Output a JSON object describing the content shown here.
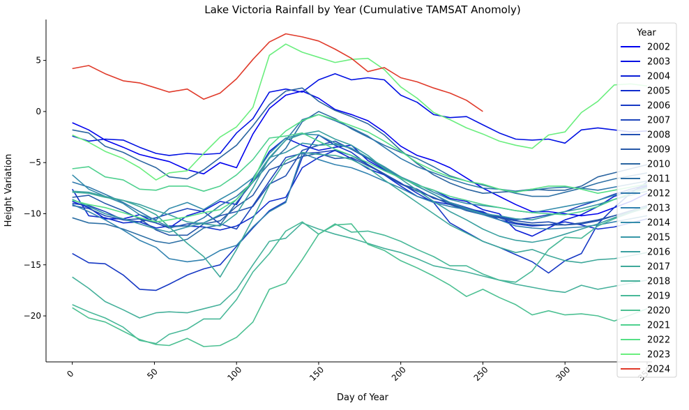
{
  "chart_data": {
    "type": "line",
    "title": "Lake Victoria Rainfall by Year (Cumulative TAMSAT Anomoly)",
    "xlabel": "Day of Year",
    "ylabel": "Height Variation",
    "xlim": [
      -16,
      353
    ],
    "ylim": [
      -24.5,
      9
    ],
    "xticks": [
      0,
      50,
      100,
      150,
      200,
      250,
      300,
      350
    ],
    "yticks": [
      5,
      0,
      -5,
      -10,
      -15,
      -20
    ],
    "grid": false,
    "legend": {
      "title": "Year",
      "placement": "right"
    },
    "x": [
      0,
      10,
      20,
      31,
      41,
      51,
      59,
      70,
      80,
      90,
      100,
      110,
      120,
      130,
      140,
      150,
      160,
      170,
      180,
      190,
      200,
      210,
      220,
      230,
      240,
      250,
      260,
      270,
      280,
      290,
      300,
      310,
      320,
      330,
      340,
      350
    ],
    "series": [
      {
        "name": "2002",
        "color": "#0000ee",
        "values": [
          -1.1,
          -1.8,
          -2.8,
          -3.5,
          -4.2,
          -4.6,
          -4.9,
          -5.7,
          -6.1,
          -5.0,
          -5.5,
          -2.2,
          0.3,
          1.6,
          2.0,
          1.3,
          0.2,
          -0.3,
          -0.9,
          -2.0,
          -3.4,
          -4.3,
          -4.8,
          -5.5,
          -6.5,
          -7.5,
          -8.3,
          -9.1,
          -9.8,
          -9.8,
          -10.0,
          -10.2,
          -10.0,
          -9.4,
          -8.8,
          -8.0
        ]
      },
      {
        "name": "2003",
        "color": "#0010e2",
        "values": [
          -2.4,
          -2.9,
          -2.7,
          -2.8,
          -3.5,
          -4.1,
          -4.3,
          -4.1,
          -4.2,
          -4.1,
          -2.1,
          -0.7,
          1.9,
          2.2,
          1.9,
          3.1,
          3.7,
          3.1,
          3.3,
          3.1,
          1.6,
          0.9,
          -0.3,
          -0.6,
          -0.5,
          -1.3,
          -2.1,
          -2.7,
          -2.8,
          -2.7,
          -3.1,
          -1.8,
          -1.6,
          -1.8,
          -2.0,
          -1.9
        ]
      },
      {
        "name": "2004",
        "color": "#0a1cd6",
        "values": [
          -8.8,
          -9.4,
          -10.5,
          -10.5,
          -10.1,
          -10.9,
          -11.4,
          -10.2,
          -9.7,
          -8.8,
          -9.1,
          -6.6,
          -3.9,
          -2.6,
          -3.3,
          -3.8,
          -3.5,
          -3.3,
          -4.8,
          -5.7,
          -6.5,
          -7.2,
          -7.7,
          -8.5,
          -8.8,
          -9.6,
          -10.0,
          -11.6,
          -12.2,
          -11.4,
          -10.6,
          -10.1,
          -9.3,
          -8.3,
          -7.8,
          -7.3
        ]
      },
      {
        "name": "2005",
        "color": "#102ccd",
        "values": [
          -7.6,
          -10.2,
          -10.4,
          -10.9,
          -10.8,
          -11.4,
          -11.2,
          -11.2,
          -11.3,
          -11.6,
          -11.2,
          -10.3,
          -8.8,
          -8.4,
          -5.5,
          -4.5,
          -3.8,
          -4.6,
          -5.6,
          -6.2,
          -7.3,
          -8.3,
          -8.8,
          -9.1,
          -9.5,
          -9.8,
          -10.6,
          -11.0,
          -11.2,
          -11.1,
          -10.8,
          -11.1,
          -11.5,
          -11.3,
          -10.9,
          -10.5
        ]
      },
      {
        "name": "2006",
        "color": "#1638c4",
        "values": [
          -13.9,
          -14.8,
          -14.9,
          -16.0,
          -17.4,
          -17.5,
          -16.9,
          -16.0,
          -15.4,
          -15.0,
          -13.2,
          -11.4,
          -9.7,
          -8.8,
          -4.5,
          -2.3,
          -3.3,
          -4.0,
          -5.2,
          -6.1,
          -7.0,
          -8.0,
          -8.9,
          -10.9,
          -11.8,
          -12.7,
          -13.3,
          -14.0,
          -14.7,
          -15.8,
          -14.6,
          -13.9,
          -11.0,
          -9.4,
          -8.0,
          -6.9
        ]
      },
      {
        "name": "2007",
        "color": "#1c44bb",
        "values": [
          -9.0,
          -9.2,
          -9.8,
          -10.6,
          -10.8,
          -10.4,
          -10.0,
          -9.5,
          -9.8,
          -11.0,
          -11.5,
          -9.2,
          -6.8,
          -4.5,
          -4.1,
          -4.0,
          -3.8,
          -4.3,
          -5.2,
          -6.2,
          -7.1,
          -7.6,
          -8.5,
          -8.9,
          -9.4,
          -9.9,
          -10.3,
          -10.6,
          -10.4,
          -10.1,
          -9.8,
          -9.2,
          -8.7,
          -8.1,
          -7.6,
          -7.2
        ]
      },
      {
        "name": "2008",
        "color": "#2250b2",
        "values": [
          -9.2,
          -9.5,
          -10.2,
          -10.6,
          -10.5,
          -10.9,
          -11.4,
          -11.0,
          -10.9,
          -10.2,
          -9.8,
          -9.3,
          -7.1,
          -6.3,
          -3.8,
          -3.3,
          -2.9,
          -3.7,
          -4.6,
          -5.6,
          -6.4,
          -7.3,
          -8.1,
          -9.0,
          -9.6,
          -10.0,
          -10.4,
          -10.7,
          -10.9,
          -10.8,
          -11.1,
          -11.0,
          -10.7,
          -10.2,
          -9.7,
          -9.2
        ]
      },
      {
        "name": "2009",
        "color": "#2658a8",
        "values": [
          -8.4,
          -8.2,
          -9.0,
          -9.7,
          -10.5,
          -11.6,
          -12.1,
          -12.1,
          -11.0,
          -10.7,
          -9.3,
          -8.2,
          -5.7,
          -5.1,
          -4.4,
          -4.1,
          -4.6,
          -4.5,
          -5.3,
          -6.1,
          -7.1,
          -7.8,
          -8.4,
          -9.1,
          -9.7,
          -10.1,
          -10.4,
          -10.9,
          -11.1,
          -11.1,
          -11.1,
          -10.9,
          -10.6,
          -10.2,
          -9.8,
          -9.4
        ]
      },
      {
        "name": "2010",
        "color": "#2a64a0",
        "values": [
          -1.8,
          -2.1,
          -3.4,
          -4.0,
          -4.8,
          -5.5,
          -6.4,
          -6.6,
          -5.7,
          -4.5,
          -3.3,
          -1.4,
          0.7,
          2.0,
          2.3,
          1.0,
          0.1,
          -0.5,
          -1.2,
          -2.3,
          -3.8,
          -5.1,
          -6.2,
          -7.0,
          -7.6,
          -8.0,
          -7.9,
          -7.8,
          -7.6,
          -7.7,
          -7.7,
          -7.3,
          -6.4,
          -6.0,
          -5.6,
          -5.2
        ]
      },
      {
        "name": "2011",
        "color": "#2e70a5",
        "values": [
          -10.4,
          -10.9,
          -11.0,
          -11.5,
          -12.1,
          -12.7,
          -12.9,
          -12.5,
          -11.4,
          -11.1,
          -8.9,
          -6.9,
          -5.1,
          -3.6,
          -1.0,
          0.0,
          -0.7,
          -1.7,
          -2.5,
          -3.3,
          -4.0,
          -4.6,
          -5.4,
          -6.3,
          -6.8,
          -7.2,
          -7.6,
          -8.0,
          -8.3,
          -8.3,
          -7.9,
          -7.5,
          -7.0,
          -6.6,
          -6.3,
          -6.0
        ]
      },
      {
        "name": "2012",
        "color": "#3078ac",
        "values": [
          -6.9,
          -7.4,
          -8.1,
          -8.9,
          -9.8,
          -10.7,
          -11.3,
          -11.2,
          -10.4,
          -9.2,
          -8.3,
          -6.9,
          -4.6,
          -2.8,
          -0.8,
          -0.3,
          -0.9,
          -1.6,
          -2.4,
          -3.5,
          -4.6,
          -5.4,
          -6.0,
          -6.6,
          -7.1,
          -7.5,
          -7.6,
          -7.8,
          -7.7,
          -7.5,
          -7.4,
          -7.5,
          -7.7,
          -7.4,
          -7.1,
          -6.8
        ]
      },
      {
        "name": "2013",
        "color": "#3282b0",
        "values": [
          -9.1,
          -9.8,
          -10.6,
          -11.6,
          -12.6,
          -13.3,
          -14.4,
          -14.7,
          -14.5,
          -13.6,
          -13.1,
          -11.3,
          -9.8,
          -8.9,
          -4.1,
          -4.7,
          -5.2,
          -5.5,
          -6.1,
          -6.8,
          -7.5,
          -8.3,
          -8.9,
          -9.3,
          -9.6,
          -10.1,
          -10.6,
          -11.2,
          -11.4,
          -11.5,
          -11.4,
          -11.3,
          -11.1,
          -10.8,
          -10.5,
          -10.2
        ]
      },
      {
        "name": "2014",
        "color": "#348cab",
        "values": [
          -6.2,
          -7.6,
          -8.3,
          -9.0,
          -10.1,
          -10.6,
          -9.5,
          -8.9,
          -9.6,
          -8.6,
          -7.7,
          -6.5,
          -4.1,
          -2.6,
          -2.2,
          -2.3,
          -3.1,
          -3.6,
          -4.5,
          -5.5,
          -6.4,
          -7.1,
          -7.9,
          -8.6,
          -9.0,
          -9.2,
          -9.4,
          -9.7,
          -9.9,
          -9.6,
          -9.3,
          -9.0,
          -8.7,
          -8.2,
          -7.8,
          -7.4
        ]
      },
      {
        "name": "2015",
        "color": "#3696a6",
        "values": [
          -8.6,
          -9.3,
          -10.0,
          -10.5,
          -11.0,
          -11.5,
          -11.8,
          -11.3,
          -10.9,
          -10.1,
          -8.6,
          -6.8,
          -4.5,
          -4.0,
          -3.1,
          -3.3,
          -3.2,
          -3.6,
          -4.5,
          -5.4,
          -6.4,
          -7.3,
          -8.1,
          -8.9,
          -9.5,
          -10.0,
          -10.2,
          -10.5,
          -10.6,
          -10.2,
          -9.8,
          -9.5,
          -9.1,
          -8.6,
          -8.2,
          -7.8
        ]
      },
      {
        "name": "2016",
        "color": "#3aa0a0",
        "values": [
          -7.8,
          -7.9,
          -8.3,
          -8.7,
          -9.1,
          -9.7,
          -10.1,
          -10.8,
          -11.0,
          -11.2,
          -10.0,
          -7.5,
          -4.5,
          -2.8,
          -2.2,
          -1.9,
          -2.7,
          -3.3,
          -4.3,
          -5.6,
          -6.6,
          -7.7,
          -8.8,
          -9.8,
          -10.6,
          -11.5,
          -12.2,
          -12.6,
          -12.8,
          -12.5,
          -12.0,
          -11.5,
          -11.0,
          -10.4,
          -9.8,
          -9.3
        ]
      },
      {
        "name": "2017",
        "color": "#3ea89a",
        "values": [
          -7.9,
          -8.0,
          -8.4,
          -8.7,
          -9.3,
          -10.1,
          -11.3,
          -12.9,
          -14.2,
          -16.2,
          -13.5,
          -10.5,
          -7.2,
          -4.8,
          -4.0,
          -4.2,
          -4.3,
          -4.7,
          -5.5,
          -6.7,
          -7.8,
          -8.9,
          -10.0,
          -11.1,
          -11.9,
          -12.7,
          -13.3,
          -13.8,
          -13.5,
          -14.1,
          -14.6,
          -14.8,
          -14.5,
          -14.4,
          -14.1,
          -13.8
        ]
      },
      {
        "name": "2018",
        "color": "#44b09a",
        "values": [
          -16.2,
          -17.3,
          -18.6,
          -19.4,
          -20.2,
          -19.7,
          -19.6,
          -19.7,
          -19.3,
          -18.9,
          -17.4,
          -15.0,
          -12.7,
          -12.4,
          -10.9,
          -11.5,
          -12.0,
          -12.4,
          -12.9,
          -13.4,
          -13.8,
          -14.4,
          -15.1,
          -15.4,
          -15.7,
          -16.1,
          -16.5,
          -16.9,
          -17.2,
          -17.5,
          -17.7,
          -17.0,
          -17.4,
          -17.1,
          -16.8,
          -16.5
        ]
      },
      {
        "name": "2019",
        "color": "#48b898",
        "values": [
          -18.9,
          -19.6,
          -20.2,
          -21.1,
          -22.4,
          -22.7,
          -21.8,
          -21.3,
          -20.3,
          -20.3,
          -18.4,
          -15.7,
          -13.9,
          -11.7,
          -10.8,
          -12.0,
          -11.0,
          -11.8,
          -11.7,
          -12.1,
          -12.7,
          -13.5,
          -14.2,
          -15.1,
          -15.1,
          -15.9,
          -16.5,
          -16.7,
          -15.6,
          -13.5,
          -12.3,
          -12.4,
          -11.2,
          -10.5,
          -9.9,
          -9.4
        ]
      },
      {
        "name": "2020",
        "color": "#4cc092",
        "values": [
          -19.2,
          -20.2,
          -20.6,
          -21.5,
          -22.3,
          -22.8,
          -22.9,
          -22.2,
          -23.0,
          -22.9,
          -22.1,
          -20.6,
          -17.4,
          -16.8,
          -14.5,
          -12.0,
          -11.1,
          -11.0,
          -13.0,
          -13.6,
          -14.6,
          -15.3,
          -16.1,
          -17.0,
          -18.1,
          -17.4,
          -18.2,
          -18.9,
          -19.9,
          -19.5,
          -19.9,
          -19.8,
          -20.0,
          -20.5,
          -19.9,
          -19.3
        ]
      },
      {
        "name": "2021",
        "color": "#4ed08e",
        "values": [
          -5.6,
          -5.4,
          -6.4,
          -6.7,
          -7.6,
          -7.7,
          -7.3,
          -7.3,
          -7.8,
          -7.3,
          -6.2,
          -4.7,
          -2.6,
          -2.4,
          -2.1,
          -2.9,
          -3.7,
          -4.3,
          -5.0,
          -5.8,
          -6.5,
          -7.2,
          -7.7,
          -8.3,
          -8.7,
          -9.1,
          -9.4,
          -9.7,
          -9.9,
          -10.0,
          -10.1,
          -9.8,
          -9.3,
          -8.6,
          -8.0,
          -7.5
        ]
      },
      {
        "name": "2022",
        "color": "#56e086",
        "values": [
          -8.7,
          -9.1,
          -9.4,
          -9.9,
          -10.4,
          -10.8,
          -10.6,
          -10.3,
          -9.9,
          -9.6,
          -8.6,
          -6.8,
          -3.4,
          -1.9,
          -0.9,
          -0.3,
          -0.8,
          -1.4,
          -2.0,
          -2.9,
          -3.9,
          -5.0,
          -5.8,
          -6.4,
          -6.8,
          -7.1,
          -7.6,
          -7.9,
          -7.6,
          -7.3,
          -7.3,
          -7.6,
          -8.0,
          -7.7,
          -7.4,
          -7.1
        ]
      },
      {
        "name": "2023",
        "color": "#6aee7e",
        "values": [
          -2.3,
          -3.0,
          -3.9,
          -4.6,
          -5.5,
          -6.7,
          -6.0,
          -5.8,
          -4.1,
          -2.5,
          -1.5,
          0.4,
          5.5,
          6.6,
          5.8,
          5.3,
          4.8,
          5.1,
          5.2,
          4.1,
          2.4,
          1.3,
          -0.1,
          -0.8,
          -1.6,
          -2.2,
          -2.9,
          -3.3,
          -3.6,
          -2.3,
          -2.0,
          -0.1,
          1.0,
          2.6,
          2.7,
          2.5
        ]
      },
      {
        "name": "2024",
        "color": "#e03a2a",
        "values": [
          4.2,
          4.5,
          3.7,
          3.0,
          2.8,
          2.3,
          1.9,
          2.2,
          1.2,
          1.8,
          3.2,
          5.1,
          6.8,
          7.6,
          7.3,
          6.9,
          6.1,
          5.2,
          3.9,
          4.3,
          3.3,
          2.9,
          2.3,
          1.8,
          1.1,
          0.0,
          null,
          null,
          null,
          null,
          null,
          null,
          null,
          null,
          null,
          null
        ]
      }
    ]
  }
}
